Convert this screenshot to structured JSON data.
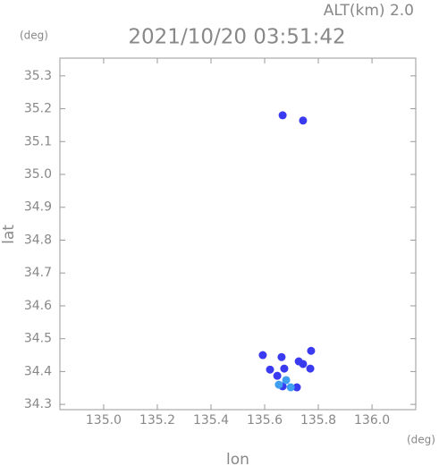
{
  "chart_data": {
    "type": "scatter",
    "title": "2021/10/20 03:51:42",
    "altitude_label": "ALT(km) 2.0",
    "x_unit": "(deg)",
    "y_unit": "(deg)",
    "xlabel": "lon",
    "ylabel": "lat",
    "xlim": [
      134.837,
      136.163
    ],
    "ylim": [
      34.284,
      35.354
    ],
    "xticks": [
      {
        "value": 135,
        "label": "135.0"
      },
      135.2,
      135.4,
      135.6,
      135.8,
      {
        "value": 136,
        "label": "136.0"
      }
    ],
    "yticks": [
      34.3,
      34.4,
      34.5,
      34.6,
      34.7,
      34.8,
      34.9,
      {
        "value": 35,
        "label": "35.0"
      },
      35.1,
      35.2,
      35.3
    ],
    "series": [
      {
        "color": "#3a3af0",
        "x": [
          135.667,
          135.743,
          135.593,
          135.663,
          135.773,
          135.727,
          135.743,
          135.77,
          135.673,
          135.62,
          135.647,
          135.72,
          135.667
        ],
        "values": [
          35.18,
          35.164,
          34.45,
          34.444,
          34.463,
          34.431,
          34.423,
          34.409,
          34.409,
          34.406,
          34.387,
          34.352,
          34.355
        ]
      },
      {
        "color": "#3f9ff0",
        "x": [
          135.68,
          135.653,
          135.697
        ],
        "values": [
          34.374,
          34.36,
          34.352
        ]
      }
    ]
  }
}
